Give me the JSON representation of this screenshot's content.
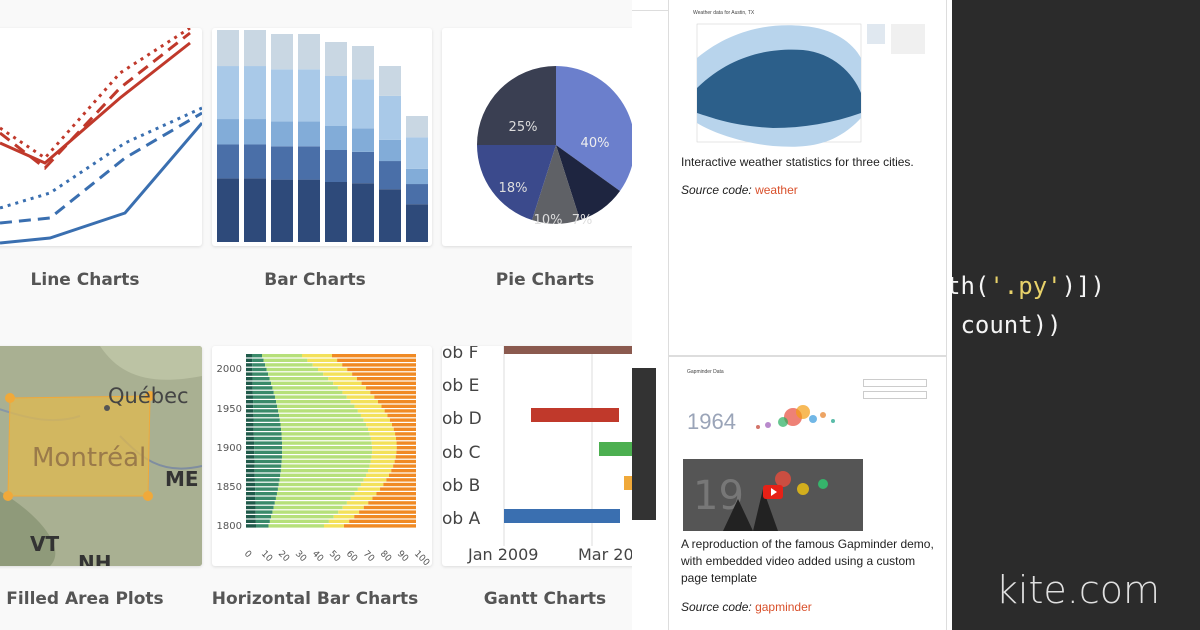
{
  "gallery": {
    "captions": [
      "Line Charts",
      "Bar Charts",
      "Pie Charts",
      "Filled Area Plots",
      "Horizontal Bar Charts",
      "Gantt Charts"
    ],
    "pie_labels": [
      "25%",
      "40%",
      "18%",
      "10%",
      "7%"
    ],
    "map_labels": [
      "Québec",
      "Montréal",
      "ME",
      "VT",
      "NH"
    ],
    "hbar_years": [
      "2000",
      "1950",
      "1900",
      "1850",
      "1800"
    ],
    "hbar_ticks": [
      "0",
      "10",
      "20",
      "30",
      "40",
      "50",
      "60",
      "70",
      "80",
      "90",
      "100"
    ],
    "gantt_jobs": [
      "ob F",
      "ob E",
      "ob D",
      "ob C",
      "ob B",
      "ob A"
    ],
    "gantt_dates": [
      "Jan 2009",
      "Mar 20"
    ]
  },
  "middle": {
    "weather_title": "Weather data for Austin, TX",
    "weather_desc": "Interactive weather statistics for three cities.",
    "source_label": "Source code:",
    "weather_link": "weather",
    "gapminder_title": "Gapminder Data",
    "gapminder_year": "1964",
    "gapminder_desc_1": "A reproduction of the famous Gapminder demo,",
    "gapminder_desc_2": "with embedded video added using a custom",
    "gapminder_desc_3": "page template",
    "gapminder_link": "gapminder"
  },
  "code": {
    "line1_pre": "th(",
    "line1_str": "'.py'",
    "line1_post": ")])",
    "line2": " count))",
    "brand": "kite.com"
  },
  "colors": {
    "red": "#c0392b",
    "blue": "#3a6fb0",
    "link": "#d9502b",
    "code_bg": "#2b2b2b",
    "string": "#e8d26a"
  }
}
